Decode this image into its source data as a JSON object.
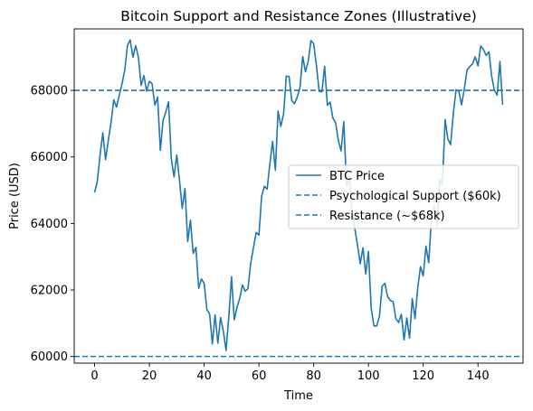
{
  "chart_data": {
    "type": "line",
    "title": "Bitcoin Support and Resistance Zones (Illustrative)",
    "xlabel": "Time",
    "ylabel": "Price (USD)",
    "xlim": [
      -7.45,
      156.45
    ],
    "ylim": [
      59800,
      69850
    ],
    "xticks": [
      0,
      20,
      40,
      60,
      80,
      100,
      120,
      140
    ],
    "xtick_labels": [
      "0",
      "20",
      "40",
      "60",
      "80",
      "100",
      "120",
      "140"
    ],
    "yticks": [
      60000,
      62000,
      64000,
      66000,
      68000
    ],
    "ytick_labels": [
      "60000",
      "62000",
      "64000",
      "66000",
      "68000"
    ],
    "grid": false,
    "legend_position": "center-right",
    "series": [
      {
        "name": "BTC Price",
        "color": "#1f77b4",
        "style": "solid",
        "x": [
          0,
          1,
          2,
          3,
          4,
          5,
          6,
          7,
          8,
          9,
          10,
          11,
          12,
          13,
          14,
          15,
          16,
          17,
          18,
          19,
          20,
          21,
          22,
          23,
          24,
          25,
          26,
          27,
          28,
          29,
          30,
          31,
          32,
          33,
          34,
          35,
          36,
          37,
          38,
          39,
          40,
          41,
          42,
          43,
          44,
          45,
          46,
          47,
          48,
          49,
          50,
          51,
          52,
          53,
          54,
          55,
          56,
          57,
          58,
          59,
          60,
          61,
          62,
          63,
          64,
          65,
          66,
          67,
          68,
          69,
          70,
          71,
          72,
          73,
          74,
          75,
          76,
          77,
          78,
          79,
          80,
          81,
          82,
          83,
          84,
          85,
          86,
          87,
          88,
          89,
          90,
          91,
          92,
          93,
          94,
          95,
          96,
          97,
          98,
          99,
          100,
          101,
          102,
          103,
          104,
          105,
          106,
          107,
          108,
          109,
          110,
          111,
          112,
          113,
          114,
          115,
          116,
          117,
          118,
          119,
          120,
          121,
          122,
          123,
          124,
          125,
          126,
          127,
          128,
          129,
          130,
          131,
          132,
          133,
          134,
          135,
          136,
          137,
          138,
          139,
          140,
          141,
          142,
          143,
          144,
          145,
          146,
          147,
          148,
          149
        ],
        "values": [
          64930,
          65270,
          66060,
          66730,
          65920,
          66500,
          67030,
          67720,
          67500,
          67850,
          68200,
          68600,
          69350,
          69520,
          69000,
          69350,
          69000,
          68150,
          68450,
          67980,
          68270,
          68200,
          67560,
          67800,
          66200,
          67100,
          67350,
          67660,
          65950,
          65400,
          66060,
          65300,
          64450,
          65050,
          63450,
          64100,
          63100,
          63280,
          62050,
          62330,
          62200,
          61410,
          61280,
          60380,
          61250,
          60400,
          61170,
          60770,
          60180,
          61190,
          62400,
          61100,
          61480,
          61750,
          62150,
          61960,
          62040,
          62800,
          63270,
          63730,
          63650,
          64820,
          65120,
          65030,
          65800,
          66470,
          65600,
          67380,
          66920,
          67280,
          68430,
          68420,
          67700,
          67600,
          67800,
          68090,
          69020,
          68560,
          68880,
          69500,
          69400,
          68750,
          67970,
          67960,
          68720,
          67550,
          67650,
          67170,
          67030,
          66500,
          66180,
          67060,
          65120,
          65400,
          64400,
          63850,
          63350,
          62790,
          63270,
          62480,
          63160,
          61450,
          60920,
          60920,
          61200,
          62110,
          62200,
          61800,
          61680,
          61650,
          61140,
          61020,
          61270,
          60500,
          61160,
          60550,
          61740,
          61140,
          62070,
          62700,
          62420,
          63320,
          62820,
          64130,
          64520,
          63920,
          65330,
          65160,
          67130,
          66540,
          66370,
          67320,
          68020,
          67970,
          67570,
          68040,
          68610,
          68720,
          68800,
          69010,
          68740,
          69340,
          69230,
          69050,
          69160,
          68420,
          68000,
          67860,
          68870,
          67570
        ]
      },
      {
        "name": "Psychological Support ($60k)",
        "color": "#1f77b4",
        "style": "dashed",
        "y": 60000
      },
      {
        "name": "Resistance (~$68k)",
        "color": "#1f77b4",
        "style": "dashed",
        "y": 68000
      }
    ]
  }
}
